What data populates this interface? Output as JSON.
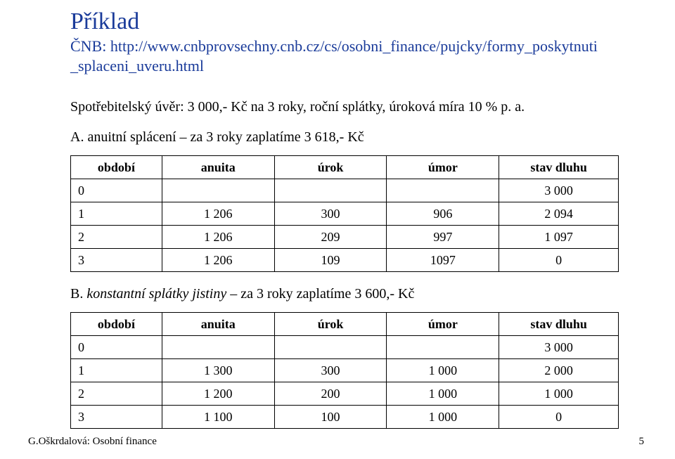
{
  "title": "Příklad",
  "url_line1": "ČNB: http://www.cnbprovsechny.cnb.cz/cs/osobni_finance/pujcky/formy_poskytnuti",
  "url_line2": "_splaceni_uveru.html",
  "intro": "Spotřebitelský úvěr: 3 000,- Kč na 3 roky, roční splátky, úroková míra 10 % p. a.",
  "sectionA_label": "A. anuitní splácení – za 3 roky zaplatíme 3 618,- Kč",
  "sectionB_prefix": "B.",
  "sectionB_italic": "konstantní splátky jistiny",
  "sectionB_suffix": " – za 3 roky zaplatíme 3 600,- Kč",
  "table_headers": {
    "c0": "období",
    "c1": "anuita",
    "c2": "úrok",
    "c3": "úmor",
    "c4": "stav dluhu"
  },
  "tableA": {
    "rows": [
      {
        "c0": "0",
        "c1": "",
        "c2": "",
        "c3": "",
        "c4": "3 000"
      },
      {
        "c0": "1",
        "c1": "1 206",
        "c2": "300",
        "c3": "906",
        "c4": "2 094"
      },
      {
        "c0": "2",
        "c1": "1 206",
        "c2": "209",
        "c3": "997",
        "c4": "1 097"
      },
      {
        "c0": "3",
        "c1": "1 206",
        "c2": "109",
        "c3": "1097",
        "c4": "0"
      }
    ]
  },
  "tableB": {
    "rows": [
      {
        "c0": "0",
        "c1": "",
        "c2": "",
        "c3": "",
        "c4": "3 000"
      },
      {
        "c0": "1",
        "c1": "1 300",
        "c2": "300",
        "c3": "1 000",
        "c4": "2 000"
      },
      {
        "c0": "2",
        "c1": "1 200",
        "c2": "200",
        "c3": "1 000",
        "c4": "1 000"
      },
      {
        "c0": "3",
        "c1": "1 100",
        "c2": "100",
        "c3": "1 000",
        "c4": "0"
      }
    ]
  },
  "footer": "G.Oškrdalová: Osobní finance",
  "page_number": "5",
  "colors": {
    "heading": "#1a3b9a",
    "text": "#000000",
    "background": "#ffffff",
    "border": "#000000"
  }
}
